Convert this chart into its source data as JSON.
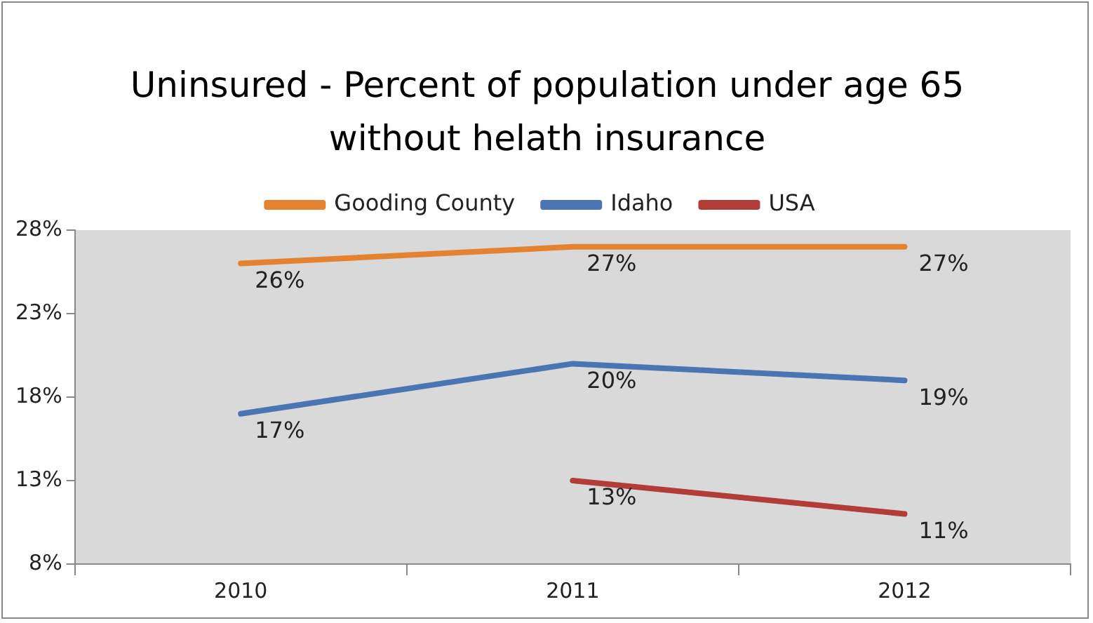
{
  "chart_data": {
    "type": "line",
    "title": "Uninsured - Percent of population under age 65 without helath insurance",
    "categories": [
      "2010",
      "2011",
      "2012"
    ],
    "series": [
      {
        "name": "Gooding County",
        "color": "#e5822f",
        "values": [
          26,
          27,
          27
        ],
        "value_labels": [
          "26%",
          "27%",
          "27%"
        ]
      },
      {
        "name": "Idaho",
        "color": "#4a74b2",
        "values": [
          17,
          20,
          19
        ],
        "value_labels": [
          "17%",
          "20%",
          "19%"
        ]
      },
      {
        "name": "USA",
        "color": "#b13c38",
        "values": [
          null,
          13,
          11
        ],
        "value_labels": [
          null,
          "13%",
          "11%"
        ]
      }
    ],
    "ylim": [
      8,
      28
    ],
    "yticks": [
      {
        "value": 8,
        "label": "8%"
      },
      {
        "value": 13,
        "label": "13%"
      },
      {
        "value": 18,
        "label": "18%"
      },
      {
        "value": 23,
        "label": "23%"
      },
      {
        "value": 28,
        "label": "28%"
      }
    ],
    "legend": "top",
    "marker": "none",
    "line_style": "solid"
  }
}
